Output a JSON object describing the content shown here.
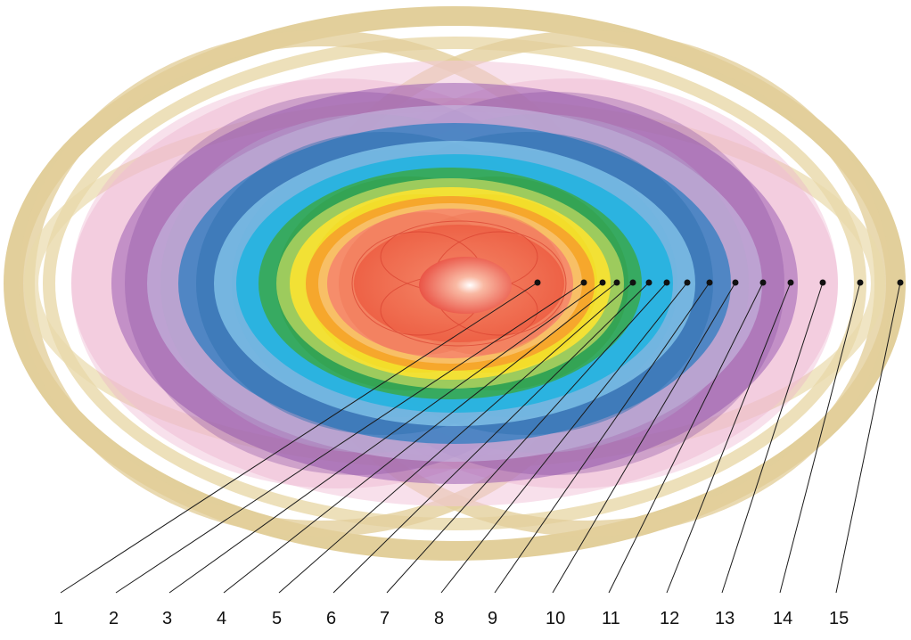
{
  "diagram": {
    "type": "concentric-layered-shells",
    "colors": {
      "gold": "#d9bf7a",
      "pink": "#e7a2c4",
      "purple": "#8a4fa3",
      "lavender": "#b3a3cf",
      "dark_blue": "#2e7cc0",
      "light_blue": "#6fb6e0",
      "cyan": "#1fb3df",
      "green": "#39a84a",
      "light_green": "#9cc95a",
      "yellow": "#f7e233",
      "orange": "#f6a32c",
      "light_orange": "#f8c069",
      "salmon": "#f58a6b",
      "red": "#ec5a3f",
      "core_red": "#e8473a",
      "line": "#1a1a1a"
    },
    "callouts": [
      {
        "label": "1"
      },
      {
        "label": "2"
      },
      {
        "label": "3"
      },
      {
        "label": "4"
      },
      {
        "label": "5"
      },
      {
        "label": "6"
      },
      {
        "label": "7"
      },
      {
        "label": "8"
      },
      {
        "label": "9"
      },
      {
        "label": "10"
      },
      {
        "label": "11"
      },
      {
        "label": "12"
      },
      {
        "label": "13"
      },
      {
        "label": "14"
      },
      {
        "label": "15"
      }
    ]
  }
}
